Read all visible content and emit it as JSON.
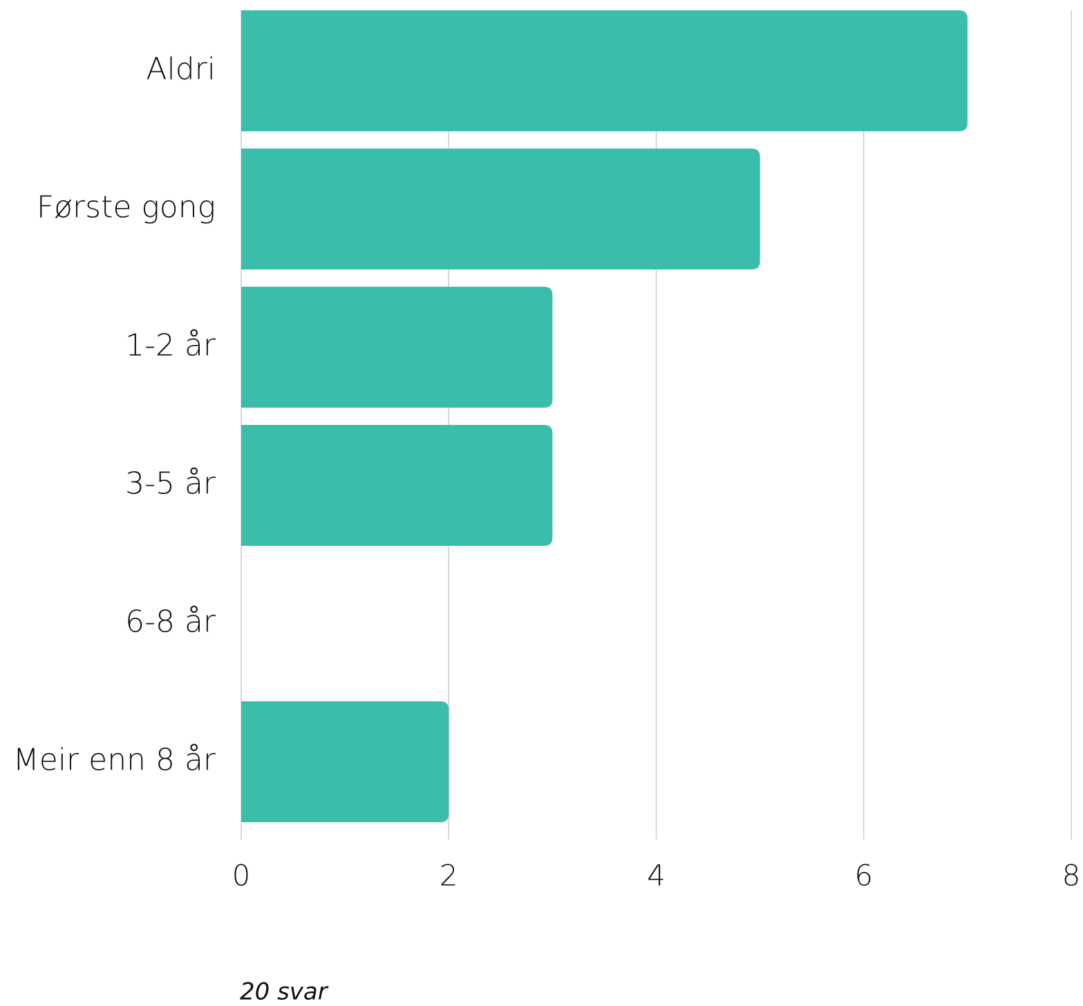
{
  "chart_data": {
    "type": "barh",
    "categories": [
      "Aldri",
      "Første gong",
      "1-2 år",
      "3-5 år",
      "6-8 år",
      "Meir enn 8 år"
    ],
    "values": [
      7,
      5,
      3,
      3,
      0,
      2
    ],
    "color": "#3bbdac",
    "xlim": [
      0,
      8
    ],
    "xticks": [
      0,
      2,
      4,
      6,
      8
    ],
    "grid": true,
    "note": "20 svar"
  }
}
